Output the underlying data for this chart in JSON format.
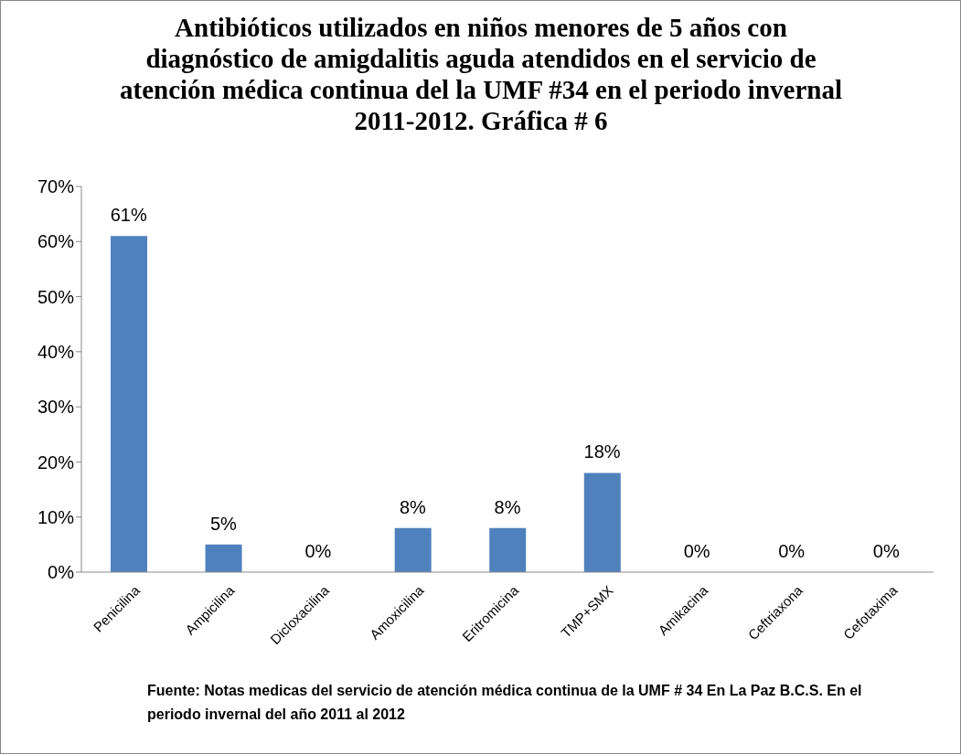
{
  "chart_data": {
    "type": "bar",
    "title": "Antibióticos  utilizados en niños menores de 5 años con diagnóstico de amigdalitis aguda atendidos en el servicio de atención médica continua del la UMF #34 en el periodo invernal 2011-2012. Gráfica # 6",
    "categories": [
      "Penicilina",
      "Ampicilina",
      "Dicloxacilina",
      "Amoxicilina",
      "Eritromicina",
      "TMP+SMX",
      "Amikacina",
      "Ceftriaxona",
      "Cefotaxima"
    ],
    "values": [
      61,
      5,
      0,
      8,
      8,
      18,
      0,
      0,
      0
    ],
    "value_labels": [
      "61%",
      "5%",
      "0%",
      "8%",
      "8%",
      "18%",
      "0%",
      "0%",
      "0%"
    ],
    "color": "#4f81bd",
    "ylim": [
      0,
      70
    ],
    "yticks": [
      {
        "value": 0,
        "label": "0%"
      },
      {
        "value": 10,
        "label": "10%"
      },
      {
        "value": 20,
        "label": "20%"
      },
      {
        "value": 30,
        "label": "30%"
      },
      {
        "value": 40,
        "label": "40%"
      },
      {
        "value": 50,
        "label": "50%"
      },
      {
        "value": 60,
        "label": "60%"
      },
      {
        "value": 70,
        "label": "70%"
      }
    ],
    "grid": false,
    "legend": false,
    "annotations": [
      "Fuente: Notas medicas del servicio de atención médica continua de la UMF # 34 En   La Paz B.C.S. En el periodo invernal del año 2011 al 2012"
    ]
  }
}
